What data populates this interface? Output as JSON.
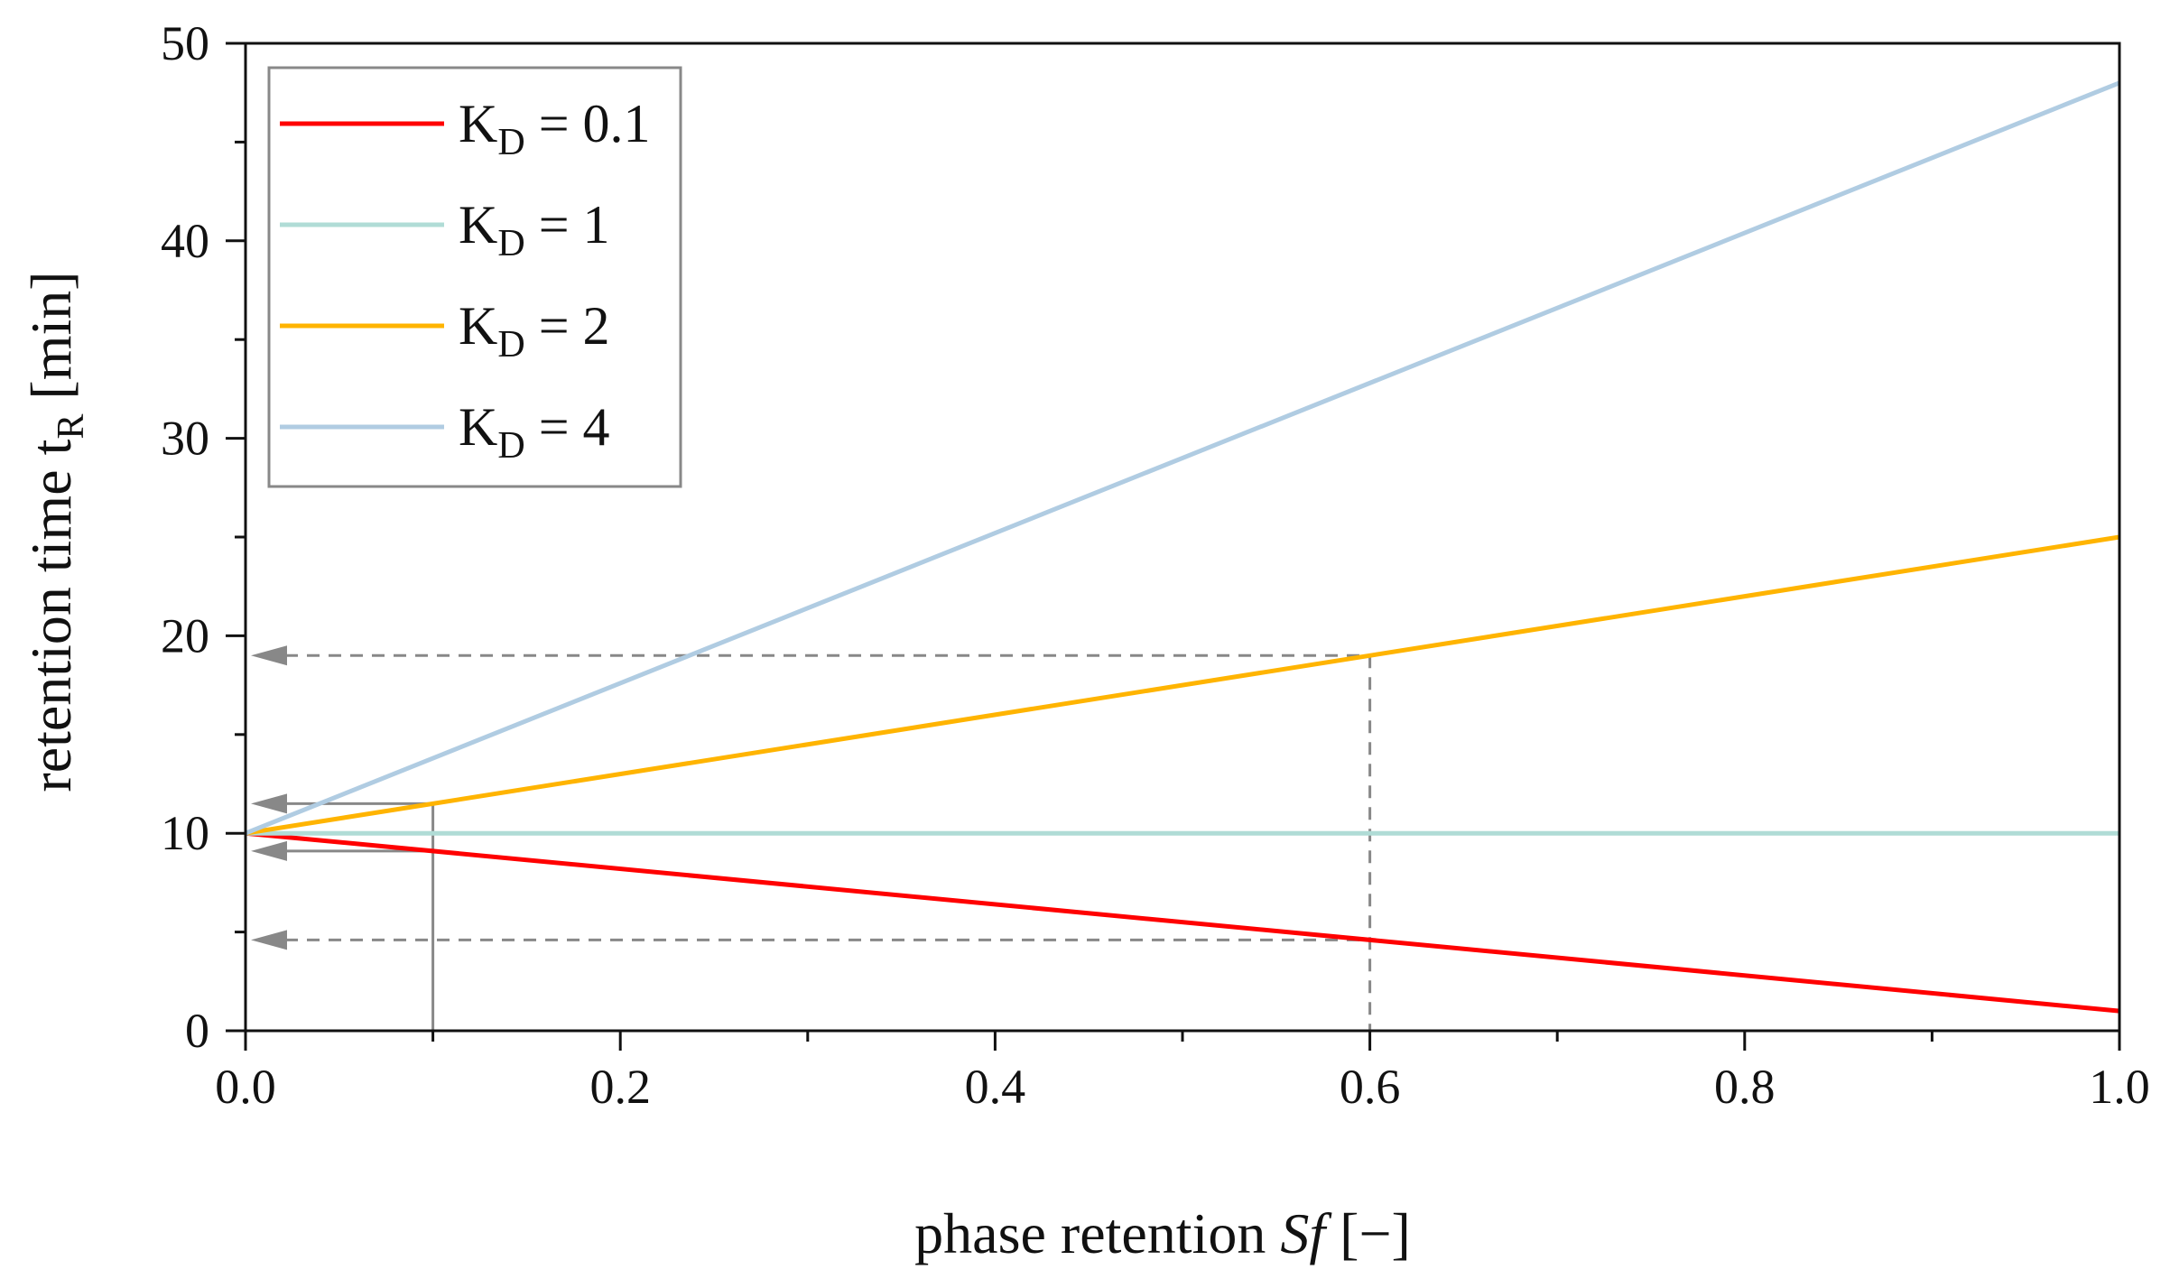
{
  "chart_data": {
    "type": "line",
    "xlabel_main": "phase retention ",
    "xlabel_italic": "Sf",
    "xlabel_unit": " [−]",
    "ylabel_main": "retention time t",
    "ylabel_sub": "R",
    "ylabel_unit": " [min]",
    "xlim": [
      0,
      1
    ],
    "ylim": [
      0,
      50
    ],
    "x_ticks": [
      "0.0",
      "0.2",
      "0.4",
      "0.6",
      "0.8",
      "1.0"
    ],
    "y_ticks": [
      "0",
      "10",
      "20",
      "30",
      "40",
      "50"
    ],
    "legend_position": "top-left",
    "series": [
      {
        "name": "K_D = 0.1",
        "label_main": "K",
        "label_sub": "D",
        "label_rest": " = 0.1",
        "color": "#ff0000",
        "x": [
          0,
          1
        ],
        "y": [
          10,
          1
        ]
      },
      {
        "name": "K_D = 1",
        "label_main": "K",
        "label_sub": "D",
        "label_rest": " = 1",
        "color": "#b0dcd6",
        "x": [
          0,
          1
        ],
        "y": [
          10,
          10
        ]
      },
      {
        "name": "K_D = 2",
        "label_main": "K",
        "label_sub": "D",
        "label_rest": " = 2",
        "color": "#ffb400",
        "x": [
          0,
          1
        ],
        "y": [
          10,
          25
        ]
      },
      {
        "name": "K_D = 4",
        "label_main": "K",
        "label_sub": "D",
        "label_rest": " = 4",
        "color": "#b0cce2",
        "x": [
          0,
          1
        ],
        "y": [
          10,
          48
        ]
      }
    ],
    "annotations": [
      {
        "style": "dashed",
        "x": 0.6,
        "y_values": [
          19,
          4.6
        ]
      },
      {
        "style": "solid",
        "x": 0.1,
        "y_values": [
          11.5,
          9.1
        ]
      }
    ]
  }
}
